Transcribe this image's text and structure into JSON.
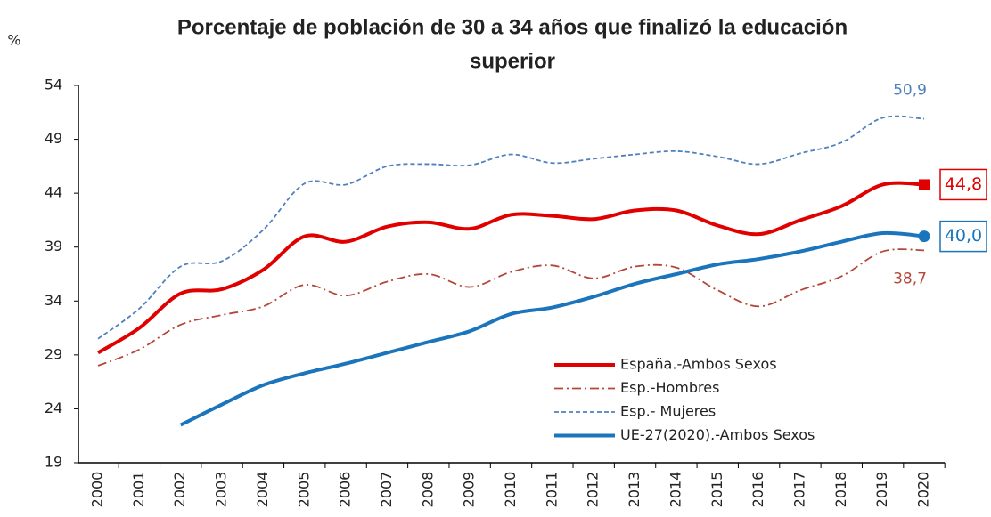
{
  "chart_data": {
    "type": "line",
    "title": [
      "Porcentaje de población de 30 a 34 años que finalizó la educación",
      "superior"
    ],
    "y_unit": "%",
    "categories": [
      "2000",
      "2001",
      "2002",
      "2003",
      "2004",
      "2005",
      "2006",
      "2007",
      "2008",
      "2009",
      "2010",
      "2011",
      "2012",
      "2013",
      "2014",
      "2015",
      "2016",
      "2017",
      "2018",
      "2019",
      "2020"
    ],
    "ylim": [
      19,
      54
    ],
    "yticks": [
      19,
      24,
      29,
      34,
      39,
      44,
      49,
      54
    ],
    "grid": false,
    "legend": "lower-right",
    "series": [
      {
        "name": "España.-Ambos Sexos",
        "color": "#e00000",
        "style": "solid",
        "values": [
          29.2,
          31.5,
          34.7,
          35.1,
          36.9,
          40.0,
          39.5,
          40.9,
          41.3,
          40.7,
          42.0,
          41.9,
          41.6,
          42.4,
          42.4,
          41.0,
          40.2,
          41.5,
          42.8,
          44.8,
          44.8
        ],
        "value_labels": [
          null,
          null,
          null,
          null,
          null,
          null,
          null,
          null,
          null,
          null,
          null,
          null,
          null,
          null,
          null,
          null,
          null,
          null,
          null,
          null,
          "44,8"
        ],
        "marker": "square"
      },
      {
        "name": "Esp.-Hombres",
        "color": "#b5473a",
        "style": "dashdot",
        "values": [
          28.0,
          29.5,
          31.8,
          32.7,
          33.5,
          35.5,
          34.5,
          35.8,
          36.5,
          35.3,
          36.7,
          37.3,
          36.1,
          37.2,
          37.1,
          35.0,
          33.5,
          35.0,
          36.3,
          38.6,
          38.7
        ],
        "value_labels": [
          null,
          null,
          null,
          null,
          null,
          null,
          null,
          null,
          null,
          null,
          null,
          null,
          null,
          null,
          null,
          null,
          null,
          null,
          null,
          null,
          "38,7"
        ]
      },
      {
        "name": "Esp.- Mujeres",
        "color": "#4f81bd",
        "style": "dashed",
        "values": [
          30.5,
          33.3,
          37.2,
          37.7,
          40.6,
          44.9,
          44.8,
          46.5,
          46.7,
          46.6,
          47.6,
          46.8,
          47.2,
          47.6,
          47.9,
          47.4,
          46.7,
          47.7,
          48.7,
          51.0,
          50.9
        ],
        "value_labels": [
          null,
          null,
          null,
          null,
          null,
          null,
          null,
          null,
          null,
          null,
          null,
          null,
          null,
          null,
          null,
          null,
          null,
          null,
          null,
          null,
          "50,9"
        ]
      },
      {
        "name": "UE-27(2020).-Ambos Sexos",
        "color": "#1b75bc",
        "style": "solid",
        "values": [
          null,
          null,
          22.5,
          24.4,
          26.2,
          27.3,
          28.2,
          29.2,
          30.2,
          31.2,
          32.8,
          33.4,
          34.4,
          35.6,
          36.5,
          37.4,
          37.9,
          38.6,
          39.5,
          40.3,
          40.0
        ],
        "value_labels": [
          null,
          null,
          null,
          null,
          null,
          null,
          null,
          null,
          null,
          null,
          null,
          null,
          null,
          null,
          null,
          null,
          null,
          null,
          null,
          null,
          "40,0"
        ],
        "marker": "circle"
      }
    ]
  }
}
